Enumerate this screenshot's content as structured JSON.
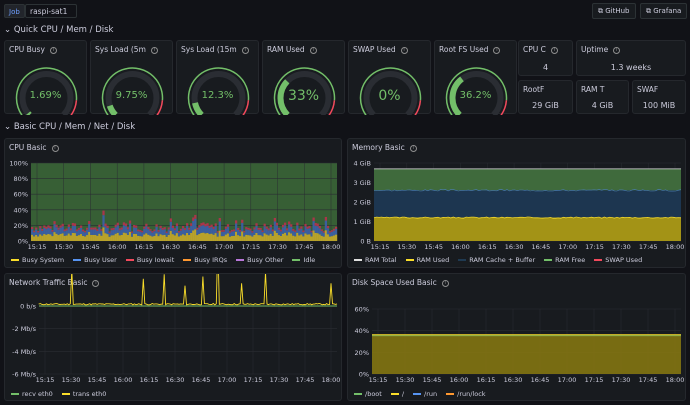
{
  "topbar": {
    "job_label": "Job",
    "job_value": "raspi-sat1",
    "github": "GitHub",
    "grafana": "Grafana"
  },
  "rows": {
    "quick": "Quick CPU / Mem / Disk",
    "basic": "Basic CPU / Mem / Net / Disk"
  },
  "colors": {
    "green": "#73bf69",
    "red": "#f2495c",
    "yellow": "#fade2a",
    "blue": "#5794f2"
  },
  "gauges": [
    {
      "title": "CPU Busy",
      "value": "1.69%",
      "fraction": 0.0169,
      "color": "#73bf69"
    },
    {
      "title": "Sys Load (5m",
      "value": "9.75%",
      "fraction": 0.0975,
      "color": "#73bf69"
    },
    {
      "title": "Sys Load (15m",
      "value": "12.3%",
      "fraction": 0.123,
      "color": "#73bf69"
    },
    {
      "title": "RAM Used",
      "value": "33%",
      "fraction": 0.33,
      "color": "#73bf69"
    },
    {
      "title": "SWAP Used",
      "value": "0%",
      "fraction": 0.0,
      "color": "#73bf69"
    },
    {
      "title": "Root FS Used",
      "value": "36.2%",
      "fraction": 0.362,
      "color": "#73bf69"
    }
  ],
  "stats": [
    {
      "title": "CPU C",
      "value": "4"
    },
    {
      "title": "Uptime",
      "value": "1.3 weeks"
    },
    {
      "title": "RootF",
      "value": "29 GiB"
    },
    {
      "title": "RAM T",
      "value": "4 GiB"
    },
    {
      "title": "SWAF",
      "value": "100 MiB"
    }
  ],
  "chart_data": [
    {
      "type": "area",
      "title": "CPU Basic",
      "x": [
        "15:15",
        "15:30",
        "15:45",
        "16:00",
        "16:15",
        "16:30",
        "16:45",
        "17:00",
        "17:15",
        "17:30",
        "17:45",
        "18:00"
      ],
      "y_ticks": [
        "100%",
        "80%",
        "60%",
        "40%",
        "20%",
        "0%"
      ],
      "ylim": [
        0,
        100
      ],
      "series": [
        {
          "name": "Busy System",
          "color": "#fade2a"
        },
        {
          "name": "Busy User",
          "color": "#5794f2"
        },
        {
          "name": "Busy Iowait",
          "color": "#f2495c"
        },
        {
          "name": "Busy IRQs",
          "color": "#ff9830"
        },
        {
          "name": "Busy Other",
          "color": "#b877d9"
        },
        {
          "name": "Idle",
          "color": "#73bf69"
        }
      ]
    },
    {
      "type": "area",
      "title": "Memory Basic",
      "x": [
        "15:15",
        "15:30",
        "15:45",
        "16:00",
        "16:15",
        "16:30",
        "16:45",
        "17:00",
        "17:15",
        "17:30",
        "17:45",
        "18:00"
      ],
      "y_ticks": [
        "4 GiB",
        "3 GiB",
        "2 GiB",
        "1 GiB",
        "0 B"
      ],
      "ylim": [
        0,
        4
      ],
      "series": [
        {
          "name": "RAM Total",
          "color": "#e0e0e0",
          "value": 3.7
        },
        {
          "name": "RAM Used",
          "color": "#fade2a",
          "value": 1.2
        },
        {
          "name": "RAM Cache + Buffer",
          "color": "#1f3a52",
          "value": 1.4
        },
        {
          "name": "RAM Free",
          "color": "#73bf69",
          "value": 1.1
        },
        {
          "name": "SWAP Used",
          "color": "#f2495c",
          "value": 0
        }
      ]
    },
    {
      "type": "line",
      "title": "Network Traffic Basic",
      "x": [
        "15:15",
        "15:30",
        "15:45",
        "16:00",
        "16:15",
        "16:30",
        "16:45",
        "17:00",
        "17:15",
        "17:30",
        "17:45",
        "18:00"
      ],
      "y_ticks": [
        "0 b/s",
        "-2 Mb/s",
        "-4 Mb/s",
        "-6 Mb/s"
      ],
      "ylim": [
        -6,
        0
      ],
      "series": [
        {
          "name": "recv eth0",
          "color": "#73bf69"
        },
        {
          "name": "trans eth0",
          "color": "#fade2a"
        }
      ]
    },
    {
      "type": "area",
      "title": "Disk Space Used Basic",
      "x": [
        "15:15",
        "15:30",
        "15:45",
        "16:00",
        "16:15",
        "16:30",
        "16:45",
        "17:00",
        "17:15",
        "17:30",
        "17:45",
        "18:00"
      ],
      "y_ticks": [
        "60%",
        "40%",
        "20%",
        "0%"
      ],
      "ylim": [
        0,
        60
      ],
      "series": [
        {
          "name": "/boot",
          "color": "#73bf69",
          "value": 36.2
        },
        {
          "name": "/",
          "color": "#fade2a",
          "value": 36.2
        },
        {
          "name": "/run",
          "color": "#5794f2",
          "value": 0
        },
        {
          "name": "/run/lock",
          "color": "#ff9830",
          "value": 0
        }
      ]
    }
  ]
}
